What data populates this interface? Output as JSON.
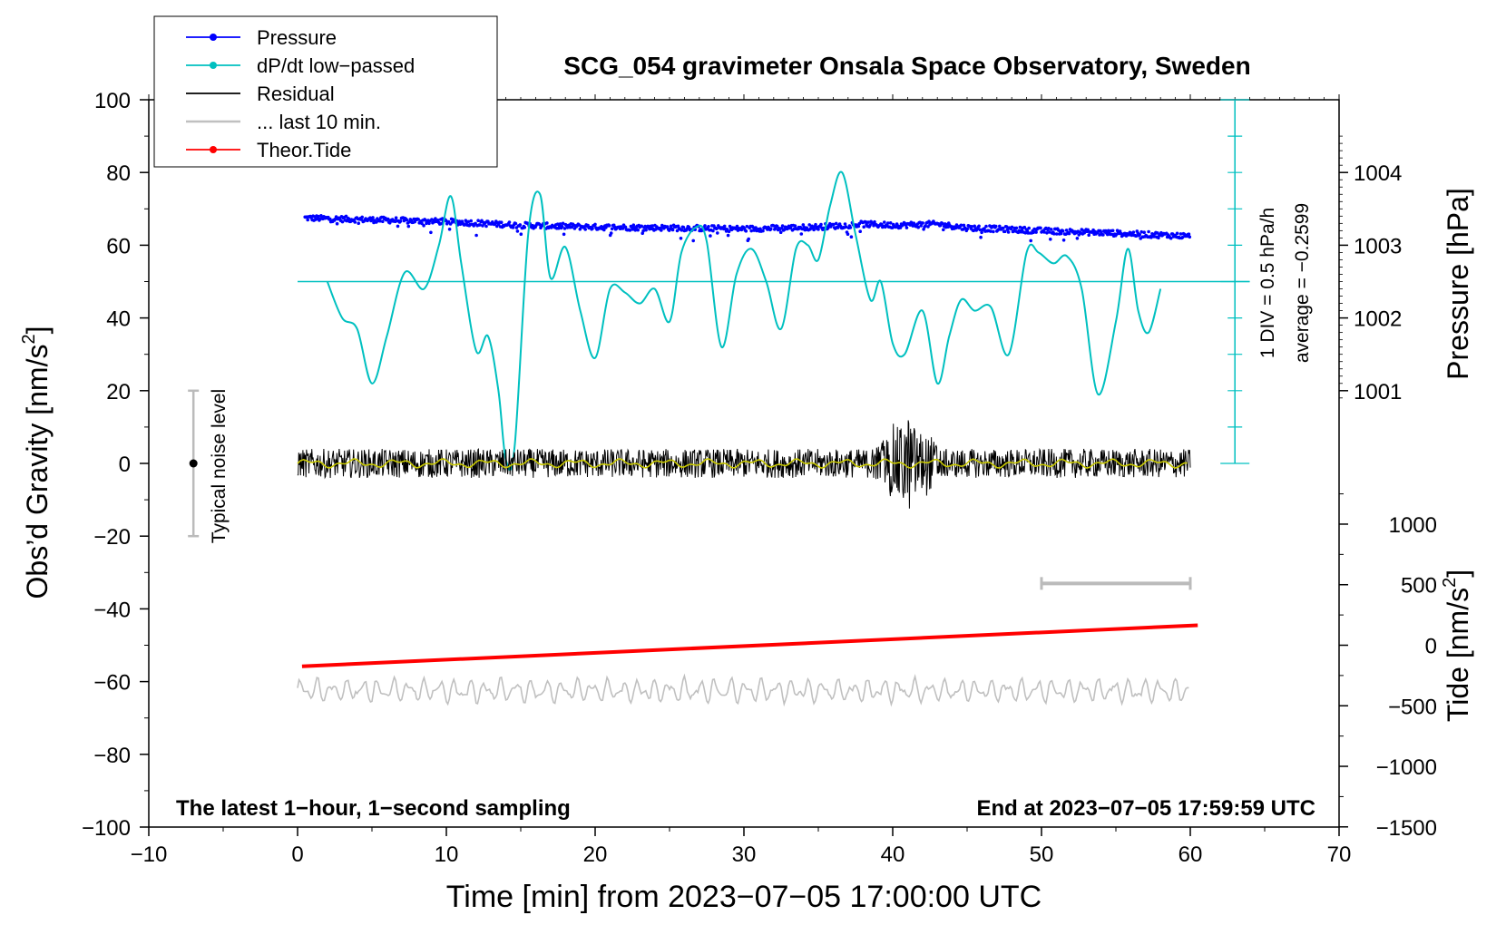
{
  "chart_data": {
    "type": "line",
    "title": "SCG_054 gravimeter Onsala Space Observatory, Sweden",
    "xlabel": "Time [min] from 2023−07−05 17:00:00 UTC",
    "ylabel_left": "Obs’d Gravity [nm/s",
    "ylabel_left_sup": "2",
    "ylabel_left_end": "]",
    "ylabel_right_pressure": "Pressure [hPa]",
    "ylabel_right_tide": "Tide [nm/s",
    "ylabel_right_tide_sup": "2",
    "ylabel_right_tide_end": "]",
    "xlim": [
      -10,
      70
    ],
    "ylim": [
      -100,
      100
    ],
    "x_ticks": [
      -10,
      0,
      10,
      20,
      30,
      40,
      50,
      60,
      70
    ],
    "x_tick_labels": [
      "−10",
      "0",
      "10",
      "20",
      "30",
      "40",
      "50",
      "60",
      "70"
    ],
    "y_ticks": [
      -100,
      -80,
      -60,
      -40,
      -20,
      0,
      20,
      40,
      60,
      80,
      100
    ],
    "y_tick_labels": [
      "−100",
      "−80",
      "−60",
      "−40",
      "−20",
      "0",
      "20",
      "40",
      "60",
      "80",
      "100"
    ],
    "pressure_ticks": [
      1001,
      1002,
      1003,
      1004
    ],
    "pressure_tick_labels": [
      "1001",
      "1002",
      "1003",
      "1004"
    ],
    "pressure_axis_map": {
      "p0": 1001,
      "y0": 20,
      "per_hpa": 20
    },
    "tide_ticks": [
      1000,
      500,
      0,
      -500,
      -1000,
      -1500
    ],
    "tide_tick_labels": [
      "1000",
      "500",
      "0",
      "−500",
      "−1000",
      "−1500"
    ],
    "tide_axis_map": {
      "t0": 0,
      "y0": -50,
      "per_1000": 33.3
    },
    "legend": {
      "position": "top-left",
      "entries": [
        {
          "label": "Pressure",
          "color": "#0000ff",
          "marker": true
        },
        {
          "label": "dP/dt low−passed",
          "color": "#00c0c0",
          "marker": true
        },
        {
          "label": "Residual",
          "color": "#000000",
          "marker": false
        },
        {
          "label": "... last 10 min.",
          "color": "#c0c0c0",
          "marker": false
        },
        {
          "label": "Theor.Tide",
          "color": "#ff0000",
          "marker": true
        }
      ]
    },
    "annotations": {
      "noise_label": "Typical noise level",
      "noise_bar": {
        "x": -7,
        "y_min": -20,
        "y_max": 20
      },
      "dpdt_scale": "1 DIV = 0.5 hPa/h",
      "dpdt_average": "average = −0.2599",
      "dpdt_axis_x": 63,
      "dpdt_zero_y": 50,
      "dpdt_axis_range": [
        0,
        100
      ],
      "bottom_left": "The latest 1−hour, 1−second sampling",
      "bottom_right": "End at 2023−07−05 17:59:59 UTC",
      "last10_bar": {
        "x_min": 50,
        "x_max": 60,
        "y": -33
      }
    },
    "series": [
      {
        "name": "Pressure",
        "color": "#0000ff",
        "x": [
          0.5,
          5,
          10,
          15,
          20,
          25,
          30,
          35,
          38,
          40,
          43,
          45,
          50,
          55,
          58,
          60
        ],
        "values": [
          67.5,
          67,
          66.5,
          65.5,
          65,
          64.8,
          64.5,
          65,
          65.8,
          65.5,
          65.8,
          64.8,
          64,
          63.3,
          62.8,
          62.5
        ]
      },
      {
        "name": "dP/dt low−passed",
        "color": "#00c0c0",
        "x": [
          2,
          3,
          4,
          5,
          6,
          7.2,
          8.5,
          9.5,
          10.3,
          11,
          12,
          12.8,
          13.5,
          14,
          14.6,
          15.5,
          16.3,
          17,
          18,
          19,
          20,
          21,
          22,
          23,
          24,
          25,
          25.8,
          26.8,
          27.5,
          28.5,
          29.5,
          30.5,
          31.5,
          32.5,
          33.5,
          34.3,
          35,
          35.8,
          36.6,
          37.5,
          38.5,
          39.2,
          40,
          40.8,
          42,
          43,
          43.8,
          44.6,
          45.5,
          46.6,
          47.8,
          49,
          49.8,
          50.8,
          51.7,
          52.7,
          53.8,
          55,
          55.8,
          56.5,
          57.2,
          58
        ],
        "values": [
          50,
          40,
          37,
          22,
          35,
          52.5,
          48,
          60,
          73.5,
          55,
          31,
          35,
          20,
          1,
          5,
          63,
          74,
          51,
          59.5,
          42,
          29,
          48,
          47,
          44,
          48,
          39,
          58,
          65,
          61,
          32,
          52,
          59,
          50,
          37,
          59,
          60,
          56,
          71,
          80,
          63,
          45,
          50,
          33,
          30,
          42,
          22,
          35,
          45,
          42,
          43,
          30,
          58,
          58,
          55,
          57,
          48,
          19,
          39,
          59,
          42,
          36,
          48
        ]
      },
      {
        "name": "Residual",
        "color": "#000000",
        "x": [
          0,
          60
        ],
        "values": [
          0,
          0
        ],
        "amplitude": 4,
        "event": {
          "x_min": 38.5,
          "x_max": 43.5,
          "amplitude": 16
        }
      },
      {
        "name": "Residual smoothed",
        "color": "#c8c800",
        "x": [
          0,
          60
        ],
        "values": [
          0,
          0
        ]
      },
      {
        "name": "... last 10 min.",
        "color": "#c0c0c0",
        "x": [
          0,
          60
        ],
        "values": [
          -62.5,
          -62.5
        ],
        "amplitude": 3.5
      },
      {
        "name": "Theor.Tide",
        "color": "#ff0000",
        "x": [
          0.3,
          60.5
        ],
        "values": [
          -55.8,
          -44.5
        ]
      }
    ]
  }
}
